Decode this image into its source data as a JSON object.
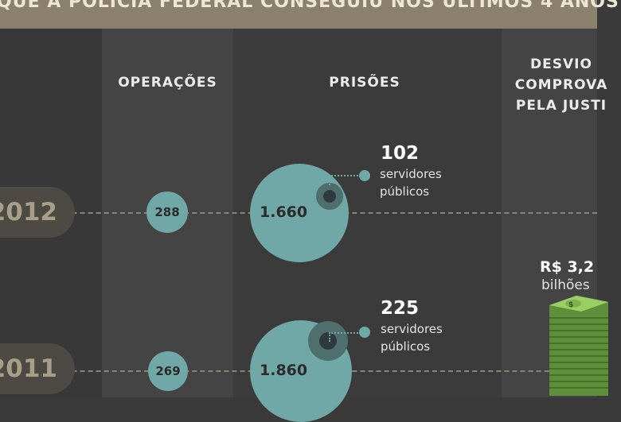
{
  "title": "QUE A POLÍCIA FEDERAL CONSEGUIU NOS ÚLTIMOS 4 ANOS",
  "headers": {
    "operacoes": "OPERAÇÕES",
    "prisoes": "PRISÕES",
    "desvio": [
      "DESVIO",
      "COMPROVA",
      "PELA JUSTI"
    ]
  },
  "years": [
    {
      "year": "2012",
      "operacoes": "288",
      "prisoes": "1.660",
      "servidores_num": "102",
      "servidores_label1": "servidores",
      "servidores_label2": "públicos"
    },
    {
      "year": "2011",
      "operacoes": "269",
      "prisoes": "1.860",
      "servidores_num": "225",
      "servidores_label1": "servidores",
      "servidores_label2": "públicos"
    }
  ],
  "desvio_2011": {
    "amount": "R$ 3,2",
    "unit": "bilhões",
    "icon": "money-stack-icon"
  },
  "colors": {
    "teal": "#6fa8a6",
    "title_bar": "#8a806c",
    "money": "#7fb04e"
  }
}
